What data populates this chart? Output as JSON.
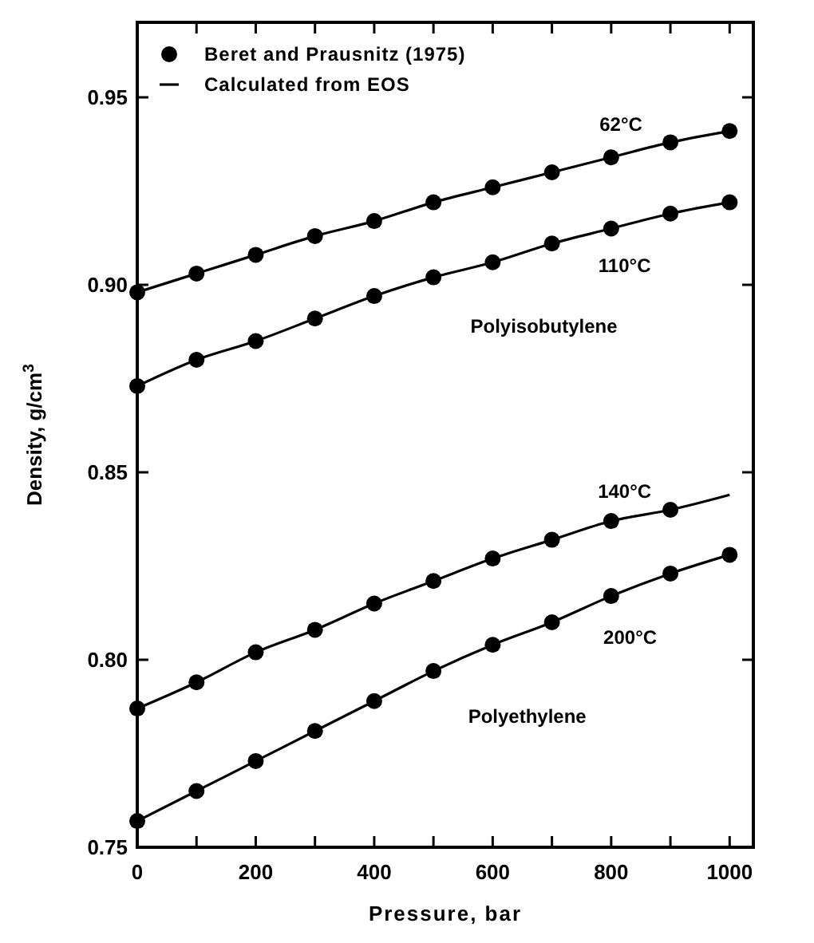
{
  "chart_data": {
    "type": "line",
    "xlabel": "Pressure, bar",
    "ylabel": "Density, g/cm$^{3}$",
    "xlim": [
      0,
      1040
    ],
    "ylim": [
      0.75,
      0.97
    ],
    "xticks": [
      0,
      {
        "value": 100,
        "label": null
      },
      200,
      {
        "value": 300,
        "label": null
      },
      400,
      {
        "value": 500,
        "label": null
      },
      600,
      {
        "value": 700,
        "label": null
      },
      800,
      {
        "value": 900,
        "label": null
      },
      1000
    ],
    "yticks": [
      {
        "value": 0.75,
        "label": "0.75"
      },
      {
        "value": 0.8,
        "label": "0.80"
      },
      {
        "value": 0.85,
        "label": "0.85"
      },
      {
        "value": 0.9,
        "label": "0.90"
      },
      {
        "value": 0.95,
        "label": "0.95"
      }
    ],
    "grid": false,
    "legend": "top left",
    "x": [
      0,
      100,
      200,
      300,
      400,
      500,
      600,
      700,
      800,
      900,
      1000
    ],
    "series": [
      {
        "name": "Beret and Prausnitz (1975)",
        "type": "scatter",
        "marker": "circle",
        "color": "#000000",
        "values": [
          0.898,
          0.903,
          0.908,
          0.913,
          0.917,
          0.922,
          0.926,
          0.93,
          0.934,
          0.938,
          0.941
        ]
      },
      {
        "type": "scatter",
        "marker": "circle",
        "color": "#000000",
        "values": [
          0.873,
          0.88,
          0.885,
          0.891,
          0.897,
          0.902,
          0.906,
          0.911,
          0.915,
          0.919,
          0.922
        ]
      },
      {
        "type": "scatter",
        "marker": "circle",
        "color": "#000000",
        "values": [
          0.787,
          0.794,
          0.802,
          0.808,
          0.815,
          0.821,
          0.827,
          0.832,
          0.837,
          0.84,
          null
        ]
      },
      {
        "type": "scatter",
        "marker": "circle",
        "color": "#000000",
        "values": [
          0.757,
          0.765,
          0.773,
          0.781,
          0.789,
          0.797,
          0.804,
          0.81,
          0.817,
          0.823,
          0.828
        ]
      },
      {
        "name": "Calculated from EOS",
        "marker": "none",
        "line_style": "solid",
        "color": "#000000",
        "values": [
          0.898,
          0.903,
          0.908,
          0.913,
          0.917,
          0.922,
          0.926,
          0.93,
          0.934,
          0.938,
          0.941
        ]
      },
      {
        "marker": "none",
        "line_style": "solid",
        "color": "#000000",
        "values": [
          0.873,
          0.88,
          0.885,
          0.891,
          0.897,
          0.902,
          0.906,
          0.911,
          0.915,
          0.919,
          0.922
        ]
      },
      {
        "marker": "none",
        "line_style": "solid",
        "color": "#000000",
        "values": [
          0.787,
          0.794,
          0.802,
          0.808,
          0.815,
          0.821,
          0.827,
          0.832,
          0.837,
          0.84,
          0.844
        ]
      },
      {
        "marker": "none",
        "line_style": "solid",
        "color": "#000000",
        "values": [
          0.757,
          0.765,
          0.773,
          0.781,
          0.789,
          0.797,
          0.804,
          0.81,
          0.817,
          0.823,
          0.828
        ]
      }
    ],
    "annotations": [
      "62°C",
      "110°C",
      "Polyisobutylene",
      "140°C",
      "200°C",
      "Polyethylene"
    ]
  }
}
